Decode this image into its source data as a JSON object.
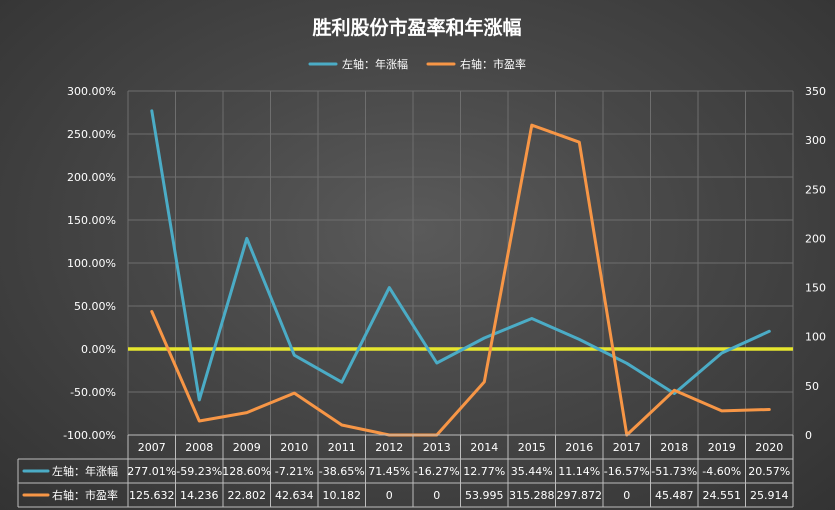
{
  "chart_data": {
    "type": "line",
    "title": "胜利股份市盈率和年涨幅",
    "categories": [
      "2007",
      "2008",
      "2009",
      "2010",
      "2011",
      "2012",
      "2013",
      "2014",
      "2015",
      "2016",
      "2017",
      "2018",
      "2019",
      "2020"
    ],
    "series": [
      {
        "name": "左轴：年涨幅",
        "axis": "left",
        "color": "#4bacc6",
        "values": [
          277.01,
          -59.23,
          128.6,
          -7.21,
          -38.65,
          71.45,
          -16.27,
          12.77,
          35.44,
          11.14,
          -16.57,
          -51.73,
          -4.6,
          20.57
        ],
        "labels": [
          "277.01%",
          "-59.23%",
          "128.60%",
          "-7.21%",
          "-38.65%",
          "71.45%",
          "-16.27%",
          "12.77%",
          "35.44%",
          "11.14%",
          "-16.57%",
          "-51.73%",
          "-4.60%",
          "20.57%"
        ]
      },
      {
        "name": "右轴：市盈率",
        "axis": "right",
        "color": "#f79646",
        "values": [
          125.632,
          14.236,
          22.802,
          42.634,
          10.182,
          0,
          0,
          53.995,
          315.288,
          297.872,
          0,
          45.487,
          24.551,
          25.914
        ],
        "labels": [
          "125.632",
          "14.236",
          "22.802",
          "42.634",
          "10.182",
          "0",
          "0",
          "53.995",
          "315.288",
          "297.872",
          "0",
          "45.487",
          "24.551",
          "25.914"
        ]
      }
    ],
    "left_axis": {
      "min": -100,
      "max": 300,
      "ticks": [
        "-100.00%",
        "-50.00%",
        "0.00%",
        "50.00%",
        "100.00%",
        "150.00%",
        "200.00%",
        "250.00%",
        "300.00%"
      ]
    },
    "right_axis": {
      "min": 0,
      "max": 350,
      "ticks": [
        "0",
        "50",
        "100",
        "150",
        "200",
        "250",
        "300",
        "350"
      ]
    },
    "zero_line_color": "#e6e62e",
    "grid": true,
    "legend_position": "top-center",
    "data_table": true
  }
}
